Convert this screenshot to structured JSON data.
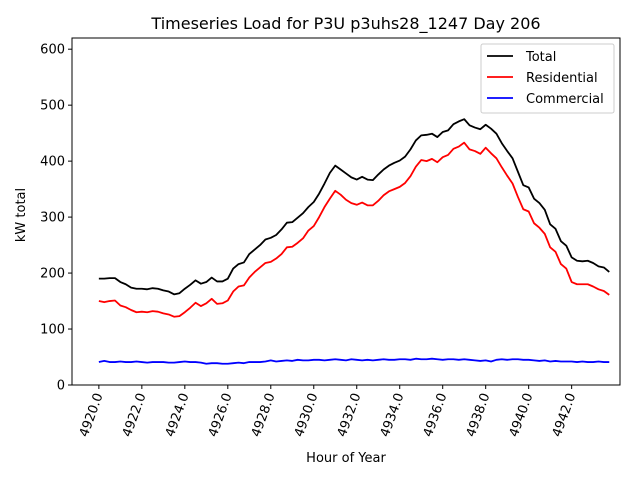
{
  "chart_data": {
    "type": "line",
    "title": "Timeseries Load for P3U p3uhs28_1247  Day 206",
    "xlabel": "Hour of Year",
    "ylabel": "kW total",
    "xlim": [
      4918.75,
      4944.25
    ],
    "ylim": [
      0,
      620
    ],
    "x_ticks": [
      4920,
      4922,
      4924,
      4926,
      4928,
      4930,
      4932,
      4934,
      4936,
      4938,
      4940,
      4942
    ],
    "x_tick_labels": [
      "4920.0",
      "4922.0",
      "4924.0",
      "4926.0",
      "4928.0",
      "4930.0",
      "4932.0",
      "4934.0",
      "4936.0",
      "4938.0",
      "4940.0",
      "4942.0"
    ],
    "y_ticks": [
      0,
      100,
      200,
      300,
      400,
      500,
      600
    ],
    "y_tick_labels": [
      "0",
      "100",
      "200",
      "300",
      "400",
      "500",
      "600"
    ],
    "legend_position": "top-right",
    "x_start": 4920,
    "x_step": 0.25,
    "series": [
      {
        "name": "Total",
        "color": "#000000",
        "values": [
          190,
          190,
          191,
          191,
          184,
          180,
          174,
          172,
          172,
          171,
          173,
          172,
          169,
          167,
          162,
          164,
          172,
          179,
          187,
          181,
          184,
          192,
          185,
          185,
          190,
          208,
          216,
          219,
          234,
          242,
          250,
          260,
          263,
          268,
          278,
          290,
          291,
          299,
          307,
          318,
          327,
          342,
          360,
          379,
          392,
          385,
          378,
          371,
          367,
          372,
          367,
          366,
          376,
          385,
          392,
          397,
          401,
          408,
          421,
          437,
          446,
          447,
          449,
          443,
          452,
          455,
          466,
          471,
          475,
          464,
          460,
          457,
          465,
          458,
          449,
          432,
          418,
          405,
          381,
          357,
          353,
          333,
          325,
          313,
          287,
          279,
          257,
          249,
          228,
          222,
          221,
          222,
          218,
          212,
          210,
          202
        ]
      },
      {
        "name": "Residential",
        "color": "#ff0000",
        "values": [
          150,
          148,
          150,
          151,
          142,
          139,
          134,
          130,
          131,
          130,
          132,
          131,
          128,
          126,
          122,
          123,
          130,
          138,
          147,
          141,
          146,
          154,
          145,
          146,
          151,
          167,
          176,
          178,
          192,
          202,
          210,
          218,
          220,
          226,
          234,
          246,
          247,
          254,
          262,
          276,
          284,
          300,
          318,
          333,
          347,
          340,
          331,
          325,
          322,
          326,
          321,
          321,
          329,
          339,
          346,
          350,
          354,
          361,
          373,
          390,
          402,
          400,
          404,
          398,
          407,
          411,
          422,
          426,
          433,
          421,
          418,
          413,
          424,
          414,
          405,
          389,
          374,
          360,
          336,
          314,
          310,
          289,
          281,
          270,
          246,
          238,
          216,
          208,
          184,
          180,
          180,
          180,
          176,
          171,
          168,
          161
        ]
      },
      {
        "name": "Commercial",
        "color": "#0000ff",
        "values": [
          41,
          43,
          41,
          41,
          42,
          41,
          41,
          42,
          41,
          40,
          41,
          41,
          41,
          40,
          40,
          41,
          42,
          41,
          41,
          40,
          38,
          39,
          39,
          38,
          38,
          39,
          40,
          39,
          41,
          41,
          41,
          42,
          44,
          42,
          43,
          44,
          43,
          45,
          44,
          44,
          45,
          45,
          44,
          45,
          46,
          45,
          44,
          46,
          45,
          44,
          45,
          44,
          45,
          46,
          45,
          45,
          46,
          46,
          45,
          47,
          46,
          46,
          47,
          46,
          45,
          46,
          46,
          45,
          46,
          45,
          44,
          43,
          44,
          42,
          45,
          46,
          45,
          46,
          46,
          45,
          45,
          44,
          43,
          44,
          42,
          43,
          42,
          42,
          42,
          41,
          42,
          41,
          41,
          42,
          41,
          41
        ]
      }
    ]
  }
}
